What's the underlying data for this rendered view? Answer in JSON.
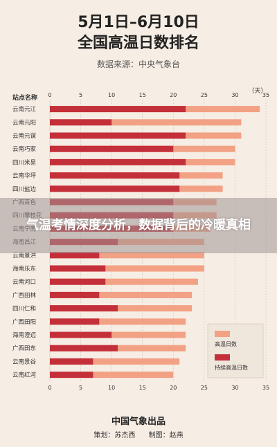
{
  "header": {
    "title_line1": "5月1日–6月10日",
    "title_line2": "全国高温日数排名",
    "source": "数据来源：中央气象台"
  },
  "overlay": {
    "text": "气温考情深度分析，数据背后的冷暖真相"
  },
  "footer": {
    "publisher": "中国气象出品",
    "planner": "策划：苏杰西",
    "illustrator": "制图：赵燕"
  },
  "colors": {
    "high_temp": "#f2a184",
    "persistent": "#c4303a",
    "grid": "#c9c0b8",
    "text": "#333333"
  },
  "chart_data": {
    "type": "bar",
    "orientation": "horizontal",
    "category_header": "站点名称",
    "unit_label": "（天）",
    "categories": [
      "云南元江",
      "云南元阳",
      "云南元谋",
      "云南巧家",
      "四川米易",
      "云南华坪",
      "四川盐边",
      "广西百色",
      "四川攀枝花",
      "云南宁南",
      "海南昌江",
      "云南景洪",
      "海南乐东",
      "云南河口",
      "广西田林",
      "四川仁和",
      "广西田阳",
      "海南澄迈",
      "广西田东",
      "云南景谷",
      "云南红河"
    ],
    "series": [
      {
        "name": "高温日数",
        "values": [
          34,
          31,
          31,
          30,
          30,
          28,
          28,
          27,
          27,
          26,
          25,
          25,
          25,
          24,
          23,
          23,
          22,
          22,
          22,
          21,
          20
        ]
      },
      {
        "name": "持续高温日数",
        "values": [
          22,
          10,
          22,
          20,
          22,
          21,
          21,
          20,
          20,
          20,
          11,
          8,
          9,
          9,
          8,
          11,
          8,
          10,
          11,
          7,
          7
        ]
      }
    ],
    "xlim": [
      0,
      35
    ],
    "xticks": [
      0,
      5,
      10,
      15,
      20,
      25,
      30,
      35
    ],
    "legend_position": "bottom-right",
    "grid": true
  }
}
